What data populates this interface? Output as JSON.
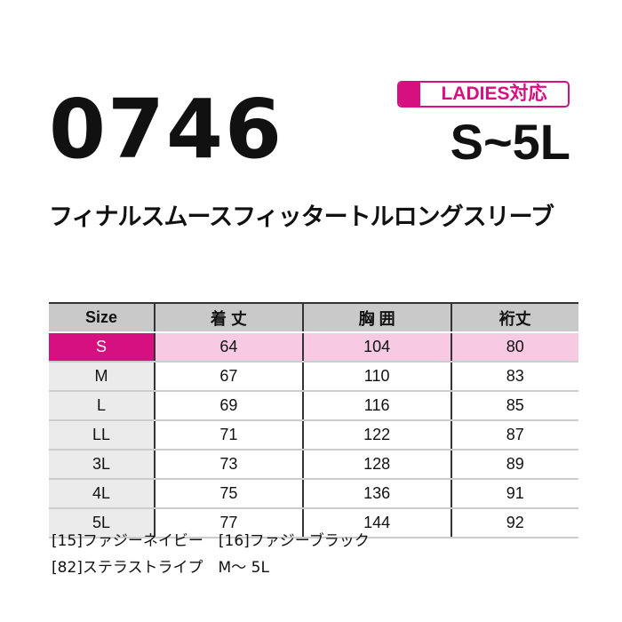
{
  "product_code": "0746",
  "badge": {
    "label": "LADIES対応",
    "color": "#d6117f"
  },
  "size_range": "S~5L",
  "product_name": "フィナルスムースフィッタートルロングスリーブ",
  "table": {
    "headers": [
      "Size",
      "着 丈",
      "胸 囲",
      "裄丈"
    ],
    "rows": [
      [
        "S",
        "64",
        "104",
        "80"
      ],
      [
        "M",
        "67",
        "110",
        "83"
      ],
      [
        "L",
        "69",
        "116",
        "85"
      ],
      [
        "LL",
        "71",
        "122",
        "87"
      ],
      [
        "3L",
        "73",
        "128",
        "89"
      ],
      [
        "4L",
        "75",
        "136",
        "91"
      ],
      [
        "5L",
        "77",
        "144",
        "92"
      ]
    ],
    "highlight_row": "S"
  },
  "colors": {
    "line1": "[15]ファジーネイビー　[16]ファジーブラック",
    "line2": "[82]ステラストライプ　M～ 5L"
  }
}
